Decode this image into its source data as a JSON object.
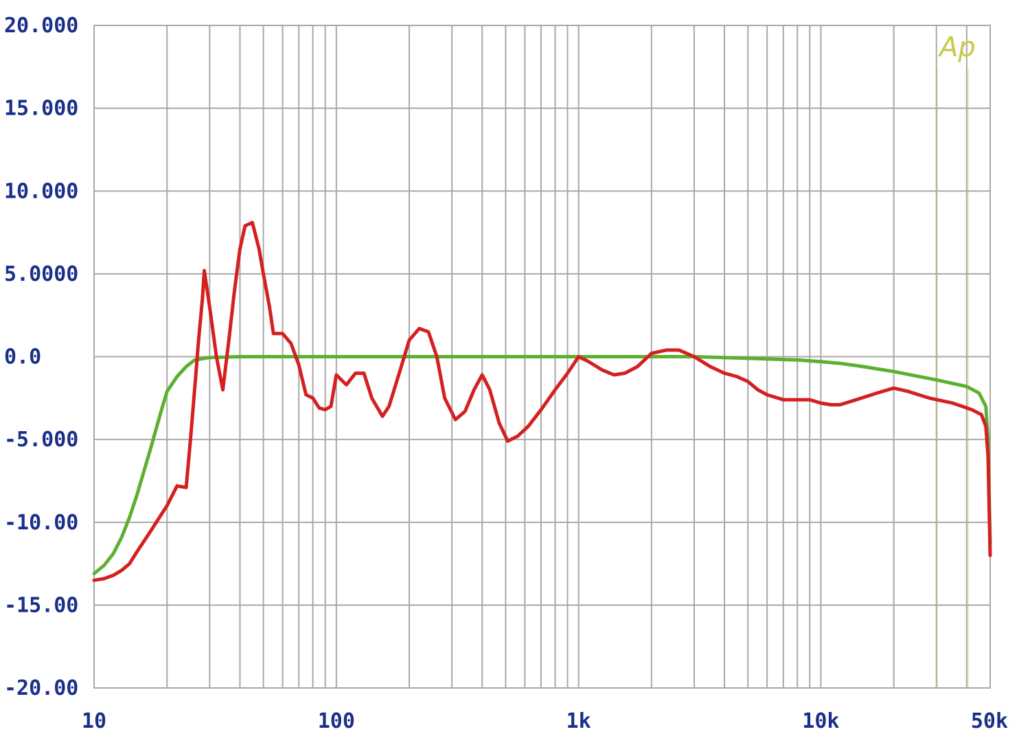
{
  "chart_data": {
    "type": "line",
    "title": "",
    "xlabel": "",
    "ylabel": "",
    "x_scale": "log",
    "xlim": [
      10,
      50000
    ],
    "ylim": [
      -20,
      20
    ],
    "grid": true,
    "legend": "none",
    "x_ticks": [
      {
        "value": 10,
        "label": "10"
      },
      {
        "value": 100,
        "label": "100"
      },
      {
        "value": 1000,
        "label": "1k"
      },
      {
        "value": 10000,
        "label": "10k"
      },
      {
        "value": 50000,
        "label": "50k"
      }
    ],
    "y_ticks": [
      {
        "value": 20,
        "label": "20.000"
      },
      {
        "value": 15,
        "label": "15.000"
      },
      {
        "value": 10,
        "label": "10.000"
      },
      {
        "value": 5,
        "label": "5.0000"
      },
      {
        "value": 0,
        "label": "0.0"
      },
      {
        "value": -5,
        "label": "-5.000"
      },
      {
        "value": -10,
        "label": "-10.00"
      },
      {
        "value": -15,
        "label": "-15.00"
      },
      {
        "value": -20,
        "label": "-20.00"
      }
    ],
    "series": [
      {
        "color": "#5cb030",
        "points": [
          [
            10,
            -13.1
          ],
          [
            11,
            -12.6
          ],
          [
            12,
            -11.9
          ],
          [
            13,
            -10.9
          ],
          [
            14,
            -9.7
          ],
          [
            15,
            -8.4
          ],
          [
            16,
            -7.0
          ],
          [
            17,
            -5.7
          ],
          [
            18,
            -4.4
          ],
          [
            19,
            -3.2
          ],
          [
            20,
            -2.1
          ],
          [
            22,
            -1.2
          ],
          [
            24,
            -0.6
          ],
          [
            26,
            -0.2
          ],
          [
            30,
            -0.05
          ],
          [
            40,
            0.0
          ],
          [
            100,
            0.0
          ],
          [
            1000,
            0.0
          ],
          [
            3000,
            0.0
          ],
          [
            5000,
            -0.1
          ],
          [
            8000,
            -0.2
          ],
          [
            10000,
            -0.3
          ],
          [
            12000,
            -0.4
          ],
          [
            15000,
            -0.6
          ],
          [
            20000,
            -0.9
          ],
          [
            30000,
            -1.4
          ],
          [
            40000,
            -1.8
          ],
          [
            45000,
            -2.2
          ],
          [
            48000,
            -3.0
          ],
          [
            49000,
            -5.0
          ],
          [
            50000,
            -11.3
          ]
        ]
      },
      {
        "color": "#d42020",
        "points": [
          [
            10,
            -13.5
          ],
          [
            11,
            -13.4
          ],
          [
            12,
            -13.2
          ],
          [
            13,
            -12.9
          ],
          [
            14,
            -12.5
          ],
          [
            15,
            -11.8
          ],
          [
            17,
            -10.6
          ],
          [
            19,
            -9.5
          ],
          [
            20,
            -9.0
          ],
          [
            22,
            -7.8
          ],
          [
            24,
            -7.9
          ],
          [
            25,
            -5.0
          ],
          [
            26,
            -2.0
          ],
          [
            27,
            1.0
          ],
          [
            28,
            3.5
          ],
          [
            28.5,
            5.2
          ],
          [
            30,
            3.0
          ],
          [
            32,
            0.0
          ],
          [
            34,
            -2.0
          ],
          [
            36,
            1.0
          ],
          [
            38,
            4.0
          ],
          [
            40,
            6.5
          ],
          [
            42,
            7.9
          ],
          [
            45,
            8.1
          ],
          [
            48,
            6.5
          ],
          [
            50,
            5.0
          ],
          [
            53,
            3.0
          ],
          [
            55,
            1.4
          ],
          [
            60,
            1.4
          ],
          [
            65,
            0.8
          ],
          [
            70,
            -0.5
          ],
          [
            75,
            -2.3
          ],
          [
            80,
            -2.5
          ],
          [
            85,
            -3.1
          ],
          [
            90,
            -3.2
          ],
          [
            95,
            -3.0
          ],
          [
            100,
            -1.1
          ],
          [
            110,
            -1.7
          ],
          [
            120,
            -1.0
          ],
          [
            130,
            -1.0
          ],
          [
            140,
            -2.5
          ],
          [
            155,
            -3.6
          ],
          [
            165,
            -3.0
          ],
          [
            180,
            -1.2
          ],
          [
            200,
            1.0
          ],
          [
            220,
            1.7
          ],
          [
            240,
            1.5
          ],
          [
            260,
            0.0
          ],
          [
            280,
            -2.5
          ],
          [
            310,
            -3.8
          ],
          [
            340,
            -3.3
          ],
          [
            370,
            -2.0
          ],
          [
            400,
            -1.1
          ],
          [
            430,
            -2.0
          ],
          [
            470,
            -4.0
          ],
          [
            510,
            -5.1
          ],
          [
            560,
            -4.8
          ],
          [
            620,
            -4.2
          ],
          [
            700,
            -3.2
          ],
          [
            800,
            -2.0
          ],
          [
            900,
            -1.0
          ],
          [
            1000,
            0.0
          ],
          [
            1100,
            -0.3
          ],
          [
            1250,
            -0.8
          ],
          [
            1400,
            -1.1
          ],
          [
            1550,
            -1.0
          ],
          [
            1750,
            -0.6
          ],
          [
            2000,
            0.2
          ],
          [
            2300,
            0.4
          ],
          [
            2600,
            0.4
          ],
          [
            3000,
            0.0
          ],
          [
            3500,
            -0.6
          ],
          [
            4000,
            -1.0
          ],
          [
            4500,
            -1.2
          ],
          [
            5000,
            -1.5
          ],
          [
            5500,
            -2.0
          ],
          [
            6000,
            -2.3
          ],
          [
            7000,
            -2.6
          ],
          [
            8000,
            -2.6
          ],
          [
            9000,
            -2.6
          ],
          [
            10000,
            -2.8
          ],
          [
            11000,
            -2.9
          ],
          [
            12000,
            -2.9
          ],
          [
            14000,
            -2.6
          ],
          [
            17000,
            -2.2
          ],
          [
            20000,
            -1.9
          ],
          [
            23000,
            -2.1
          ],
          [
            28000,
            -2.5
          ],
          [
            35000,
            -2.8
          ],
          [
            42000,
            -3.2
          ],
          [
            46000,
            -3.5
          ],
          [
            48000,
            -4.2
          ],
          [
            49000,
            -6.0
          ],
          [
            50000,
            -12.0
          ]
        ]
      }
    ]
  },
  "logo": {
    "text": "Ap",
    "color": "#c8c84a"
  }
}
